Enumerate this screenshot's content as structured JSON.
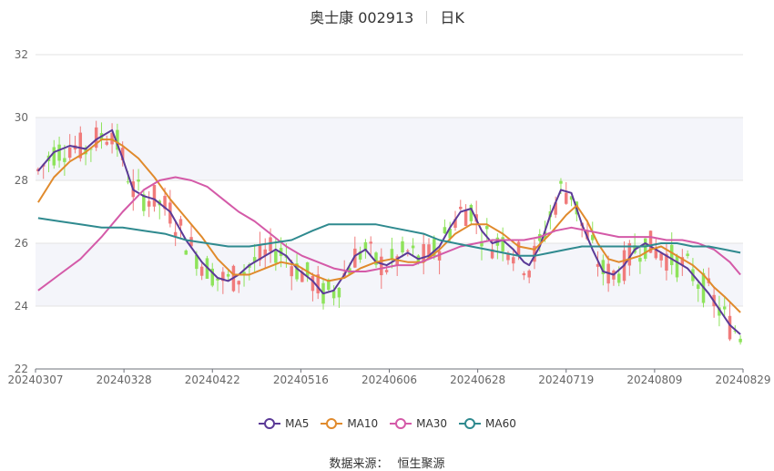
{
  "header": {
    "stock": "奥士康 002913",
    "period": "日K"
  },
  "legend": [
    {
      "name": "MA5",
      "color": "#5b3a97"
    },
    {
      "name": "MA10",
      "color": "#e08a2c"
    },
    {
      "name": "MA30",
      "color": "#d45aa8"
    },
    {
      "name": "MA60",
      "color": "#2f8a8f"
    }
  ],
  "source": {
    "label": "数据来源：",
    "value": "恒生聚源"
  },
  "chart_data": {
    "type": "candlestick",
    "x_ticks": [
      "20240307",
      "20240328",
      "20240422",
      "20240516",
      "20240606",
      "20240628",
      "20240719",
      "20240809",
      "20240829"
    ],
    "ylim": [
      22,
      32
    ],
    "y_ticks": [
      22,
      24,
      26,
      28,
      30,
      32
    ],
    "up_color": "#f07b7b",
    "down_color": "#8ee35b",
    "ma5": [
      [
        0,
        28.3
      ],
      [
        3,
        28.9
      ],
      [
        6,
        29.1
      ],
      [
        9,
        29.0
      ],
      [
        11,
        29.3
      ],
      [
        14,
        29.6
      ],
      [
        16,
        28.7
      ],
      [
        18,
        27.7
      ],
      [
        20,
        27.5
      ],
      [
        22,
        27.4
      ],
      [
        25,
        27.0
      ],
      [
        28,
        26.1
      ],
      [
        31,
        25.4
      ],
      [
        34,
        24.9
      ],
      [
        36,
        24.8
      ],
      [
        38,
        25.0
      ],
      [
        40,
        25.3
      ],
      [
        43,
        25.6
      ],
      [
        45,
        25.8
      ],
      [
        47,
        25.6
      ],
      [
        49,
        25.2
      ],
      [
        52,
        24.8
      ],
      [
        54,
        24.4
      ],
      [
        56,
        24.5
      ],
      [
        58,
        25.0
      ],
      [
        60,
        25.6
      ],
      [
        62,
        25.8
      ],
      [
        64,
        25.4
      ],
      [
        66,
        25.3
      ],
      [
        68,
        25.5
      ],
      [
        70,
        25.7
      ],
      [
        72,
        25.5
      ],
      [
        74,
        25.6
      ],
      [
        76,
        25.9
      ],
      [
        78,
        26.5
      ],
      [
        80,
        27.0
      ],
      [
        82,
        27.1
      ],
      [
        84,
        26.4
      ],
      [
        86,
        26.0
      ],
      [
        88,
        26.1
      ],
      [
        90,
        25.8
      ],
      [
        92,
        25.4
      ],
      [
        93,
        25.3
      ],
      [
        95,
        25.9
      ],
      [
        97,
        26.9
      ],
      [
        99,
        27.7
      ],
      [
        101,
        27.6
      ],
      [
        103,
        26.6
      ],
      [
        105,
        25.8
      ],
      [
        107,
        25.1
      ],
      [
        109,
        25.0
      ],
      [
        111,
        25.3
      ],
      [
        113,
        25.8
      ],
      [
        115,
        26.0
      ],
      [
        117,
        25.8
      ],
      [
        119,
        25.6
      ],
      [
        121,
        25.4
      ],
      [
        123,
        25.2
      ],
      [
        125,
        24.8
      ],
      [
        127,
        24.4
      ],
      [
        129,
        23.9
      ],
      [
        131,
        23.4
      ],
      [
        133,
        23.1
      ]
    ],
    "ma10": [
      [
        0,
        27.3
      ],
      [
        3,
        28.1
      ],
      [
        6,
        28.6
      ],
      [
        9,
        28.9
      ],
      [
        12,
        29.3
      ],
      [
        14,
        29.3
      ],
      [
        16,
        29.1
      ],
      [
        19,
        28.7
      ],
      [
        22,
        28.1
      ],
      [
        25,
        27.4
      ],
      [
        28,
        26.8
      ],
      [
        31,
        26.2
      ],
      [
        34,
        25.5
      ],
      [
        37,
        25.0
      ],
      [
        40,
        25.0
      ],
      [
        43,
        25.2
      ],
      [
        46,
        25.4
      ],
      [
        49,
        25.3
      ],
      [
        52,
        25.0
      ],
      [
        55,
        24.8
      ],
      [
        58,
        24.9
      ],
      [
        61,
        25.2
      ],
      [
        64,
        25.4
      ],
      [
        67,
        25.5
      ],
      [
        70,
        25.4
      ],
      [
        73,
        25.4
      ],
      [
        76,
        25.8
      ],
      [
        79,
        26.3
      ],
      [
        82,
        26.6
      ],
      [
        85,
        26.6
      ],
      [
        88,
        26.3
      ],
      [
        91,
        25.9
      ],
      [
        94,
        25.8
      ],
      [
        97,
        26.3
      ],
      [
        100,
        26.9
      ],
      [
        102,
        27.2
      ],
      [
        104,
        26.7
      ],
      [
        106,
        26.0
      ],
      [
        108,
        25.5
      ],
      [
        110,
        25.4
      ],
      [
        112,
        25.5
      ],
      [
        114,
        25.6
      ],
      [
        116,
        25.8
      ],
      [
        118,
        25.9
      ],
      [
        120,
        25.7
      ],
      [
        122,
        25.5
      ],
      [
        124,
        25.3
      ],
      [
        126,
        25.0
      ],
      [
        128,
        24.6
      ],
      [
        130,
        24.3
      ],
      [
        133,
        23.8
      ]
    ],
    "ma30": [
      [
        0,
        24.5
      ],
      [
        4,
        25.0
      ],
      [
        8,
        25.5
      ],
      [
        12,
        26.2
      ],
      [
        16,
        27.0
      ],
      [
        20,
        27.7
      ],
      [
        23,
        28.0
      ],
      [
        26,
        28.1
      ],
      [
        29,
        28.0
      ],
      [
        32,
        27.8
      ],
      [
        35,
        27.4
      ],
      [
        38,
        27.0
      ],
      [
        41,
        26.7
      ],
      [
        44,
        26.3
      ],
      [
        47,
        25.9
      ],
      [
        50,
        25.6
      ],
      [
        53,
        25.4
      ],
      [
        56,
        25.2
      ],
      [
        59,
        25.1
      ],
      [
        62,
        25.1
      ],
      [
        65,
        25.2
      ],
      [
        68,
        25.3
      ],
      [
        71,
        25.3
      ],
      [
        74,
        25.5
      ],
      [
        77,
        25.7
      ],
      [
        80,
        25.9
      ],
      [
        83,
        26.0
      ],
      [
        86,
        26.1
      ],
      [
        89,
        26.1
      ],
      [
        92,
        26.1
      ],
      [
        95,
        26.2
      ],
      [
        98,
        26.4
      ],
      [
        101,
        26.5
      ],
      [
        104,
        26.4
      ],
      [
        107,
        26.3
      ],
      [
        110,
        26.2
      ],
      [
        113,
        26.2
      ],
      [
        116,
        26.2
      ],
      [
        119,
        26.1
      ],
      [
        122,
        26.1
      ],
      [
        125,
        26.0
      ],
      [
        128,
        25.8
      ],
      [
        131,
        25.4
      ],
      [
        133,
        25.0
      ]
    ],
    "ma60": [
      [
        0,
        26.8
      ],
      [
        4,
        26.7
      ],
      [
        8,
        26.6
      ],
      [
        12,
        26.5
      ],
      [
        16,
        26.5
      ],
      [
        20,
        26.4
      ],
      [
        24,
        26.3
      ],
      [
        28,
        26.1
      ],
      [
        32,
        26.0
      ],
      [
        36,
        25.9
      ],
      [
        40,
        25.9
      ],
      [
        44,
        26.0
      ],
      [
        48,
        26.1
      ],
      [
        52,
        26.4
      ],
      [
        55,
        26.6
      ],
      [
        58,
        26.6
      ],
      [
        61,
        26.6
      ],
      [
        64,
        26.6
      ],
      [
        67,
        26.5
      ],
      [
        70,
        26.4
      ],
      [
        73,
        26.3
      ],
      [
        76,
        26.1
      ],
      [
        79,
        26.0
      ],
      [
        82,
        25.9
      ],
      [
        85,
        25.8
      ],
      [
        88,
        25.7
      ],
      [
        91,
        25.6
      ],
      [
        94,
        25.6
      ],
      [
        97,
        25.7
      ],
      [
        100,
        25.8
      ],
      [
        103,
        25.9
      ],
      [
        106,
        25.9
      ],
      [
        109,
        25.9
      ],
      [
        112,
        25.9
      ],
      [
        115,
        25.9
      ],
      [
        118,
        26.0
      ],
      [
        121,
        26.0
      ],
      [
        124,
        25.9
      ],
      [
        127,
        25.9
      ],
      [
        130,
        25.8
      ],
      [
        133,
        25.7
      ]
    ]
  }
}
